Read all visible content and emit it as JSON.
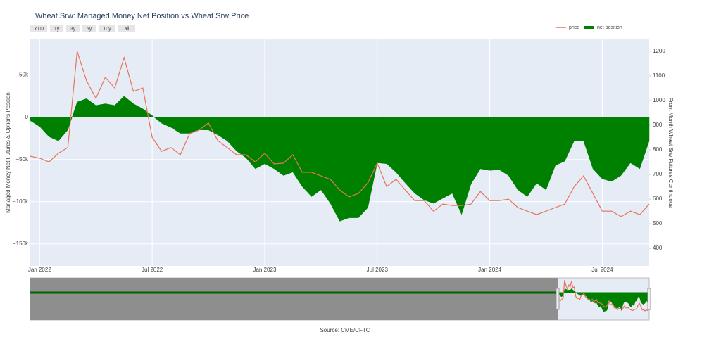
{
  "chart_data": {
    "type": "line",
    "title": "Wheat Srw: Managed Money Net Position vs Wheat Srw Price",
    "y_label": "Managed Money Net Futures & Options Position",
    "y2_label": "Front Month Wheat Srw Futures Continuous",
    "source": "Source: CME/CFTC",
    "range_buttons": [
      "YTD",
      "1y",
      "3y",
      "5y",
      "10y",
      "all"
    ],
    "legend": "top-right",
    "grid": true,
    "categories": [
      null,
      "Jan 2022",
      null,
      null,
      null,
      null,
      null,
      null,
      null,
      null,
      null,
      null,
      null,
      "Jul 2022",
      null,
      null,
      null,
      null,
      null,
      null,
      null,
      null,
      null,
      null,
      null,
      "Jan 2023",
      null,
      null,
      null,
      null,
      null,
      null,
      null,
      null,
      null,
      null,
      null,
      "Jul 2023",
      null,
      null,
      null,
      null,
      null,
      null,
      null,
      null,
      null,
      null,
      null,
      "Jan 2024",
      null,
      null,
      null,
      null,
      null,
      null,
      null,
      null,
      null,
      null,
      null,
      "Jul 2024",
      null,
      null,
      null,
      null,
      null
    ],
    "ylim": [
      -176000,
      93000
    ],
    "yticks": [
      {
        "value": 50000,
        "label": "50k"
      },
      0,
      {
        "value": -50000,
        "label": "−50k"
      },
      {
        "value": -100000,
        "label": "−100k"
      },
      {
        "value": -150000,
        "label": "−150k"
      }
    ],
    "y2lim": [
      329,
      1251
    ],
    "y2ticks": [
      400,
      500,
      600,
      700,
      800,
      900,
      1000,
      1100,
      1200
    ],
    "series": [
      {
        "name": "price",
        "color": "#e8735a",
        "axis": "y2",
        "values": [
          774,
          766,
          751,
          786,
          809,
          1200,
          1080,
          1009,
          1094,
          1051,
          1174,
          1037,
          1051,
          851,
          794,
          809,
          780,
          866,
          880,
          909,
          837,
          809,
          780,
          780,
          751,
          786,
          743,
          746,
          780,
          709,
          709,
          694,
          680,
          637,
          609,
          623,
          666,
          746,
          651,
          680,
          637,
          594,
          594,
          551,
          580,
          574,
          574,
          580,
          631,
          594,
          594,
          600,
          566,
          551,
          537,
          551,
          566,
          580,
          651,
          694,
          623,
          551,
          551,
          529,
          551,
          537,
          580
        ]
      },
      {
        "name": "net position",
        "color": "#008000",
        "fill": "tozeroy",
        "values": [
          -4000,
          -11000,
          -23000,
          -28000,
          -15000,
          18000,
          22000,
          14000,
          16000,
          14000,
          25000,
          16000,
          10000,
          2000,
          -7000,
          -12000,
          -19000,
          -19000,
          -15000,
          -15000,
          -21000,
          -28000,
          -40000,
          -48000,
          -61000,
          -55000,
          -61000,
          -69000,
          -65000,
          -82000,
          -94000,
          -86000,
          -102000,
          -123000,
          -119000,
          -119000,
          -107000,
          -54000,
          -55000,
          -65000,
          -78000,
          -90000,
          -98000,
          -102000,
          -96000,
          -90000,
          -115000,
          -79000,
          -61000,
          -63000,
          -62000,
          -69000,
          -86000,
          -94000,
          -78000,
          -86000,
          -57000,
          -52000,
          -28000,
          -28000,
          -61000,
          -73000,
          -76000,
          -69000,
          -54000,
          -61000,
          -28000
        ]
      }
    ]
  }
}
